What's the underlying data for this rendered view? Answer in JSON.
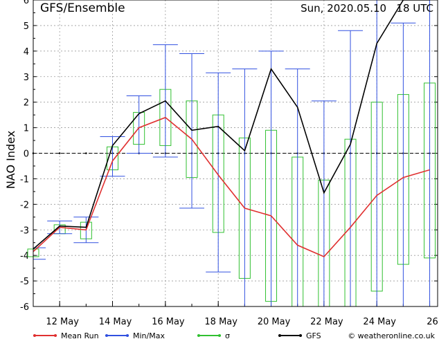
{
  "chart_data": {
    "type": "line",
    "title_left": "GFS/Ensemble",
    "title_right": "Sun, 2020.05.10   18 UTC",
    "ylabel": "NAO Index",
    "ylim": [
      -6,
      6
    ],
    "yticks": [
      "-6",
      "-5",
      "-4",
      "-3",
      "-2",
      "-1",
      "0",
      "1",
      "2",
      "3",
      "4",
      "5",
      "6"
    ],
    "xlim": [
      0,
      15.3
    ],
    "xticks": [
      {
        "x": 1,
        "label": "12 May"
      },
      {
        "x": 3,
        "label": "14 May"
      },
      {
        "x": 5,
        "label": "16 May"
      },
      {
        "x": 7,
        "label": "18 May"
      },
      {
        "x": 9,
        "label": "20 May"
      },
      {
        "x": 11,
        "label": "22 May"
      },
      {
        "x": 13,
        "label": "24 May"
      },
      {
        "x": 15,
        "label": "26"
      }
    ],
    "x": [
      0,
      1,
      2,
      3,
      4,
      5,
      6,
      7,
      8,
      9,
      10,
      11,
      12,
      13,
      14,
      15
    ],
    "series": [
      {
        "name": "Mean Run",
        "color": "#e03030",
        "values": [
          -3.85,
          -2.9,
          -3.0,
          -0.3,
          1.0,
          1.4,
          0.55,
          -0.85,
          -2.15,
          -2.45,
          -3.6,
          -4.05,
          -2.9,
          -1.65,
          -0.95,
          -0.65
        ]
      },
      {
        "name": "GFS",
        "color": "#000000",
        "values": [
          -3.75,
          -2.85,
          -2.9,
          0.3,
          1.55,
          2.05,
          0.9,
          1.05,
          0.1,
          3.3,
          1.8,
          -1.55,
          0.35,
          4.3,
          6.0,
          6.0
        ]
      }
    ],
    "minmax": {
      "name": "Min/Max",
      "color": "#3050e0",
      "min": [
        -4.15,
        -3.15,
        -3.5,
        -0.9,
        0.0,
        -0.15,
        -2.15,
        -4.65,
        -6.0,
        -6.0,
        -6.0,
        -6.0,
        -6.0,
        -6.0,
        -6.0,
        -6.0
      ],
      "max": [
        -3.7,
        -2.65,
        -2.5,
        0.65,
        2.25,
        4.25,
        3.9,
        3.15,
        3.3,
        4.0,
        3.3,
        2.05,
        4.8,
        6.0,
        5.1,
        6.0
      ]
    },
    "sigma": {
      "name": "σ",
      "color": "#30c030",
      "low": [
        -4.05,
        -3.15,
        -3.35,
        -0.65,
        0.35,
        0.3,
        -0.95,
        -3.1,
        -4.9,
        -5.8,
        -6.0,
        -6.0,
        -6.0,
        -5.4,
        -4.35,
        -4.1
      ],
      "high": [
        -3.75,
        -2.8,
        -2.7,
        0.25,
        1.6,
        2.5,
        2.05,
        1.5,
        0.6,
        0.9,
        -0.15,
        -1.05,
        0.55,
        2.0,
        2.3,
        2.75
      ]
    },
    "zero_line": true,
    "grid": true,
    "legend_position": "bottom",
    "legend": [
      {
        "label": "Mean Run",
        "color": "#e03030"
      },
      {
        "label": "Min/Max",
        "color": "#3050e0"
      },
      {
        "label": "σ",
        "color": "#30c030"
      },
      {
        "label": "GFS",
        "color": "#000000"
      }
    ],
    "credit": "© weatheronline.co.uk"
  }
}
